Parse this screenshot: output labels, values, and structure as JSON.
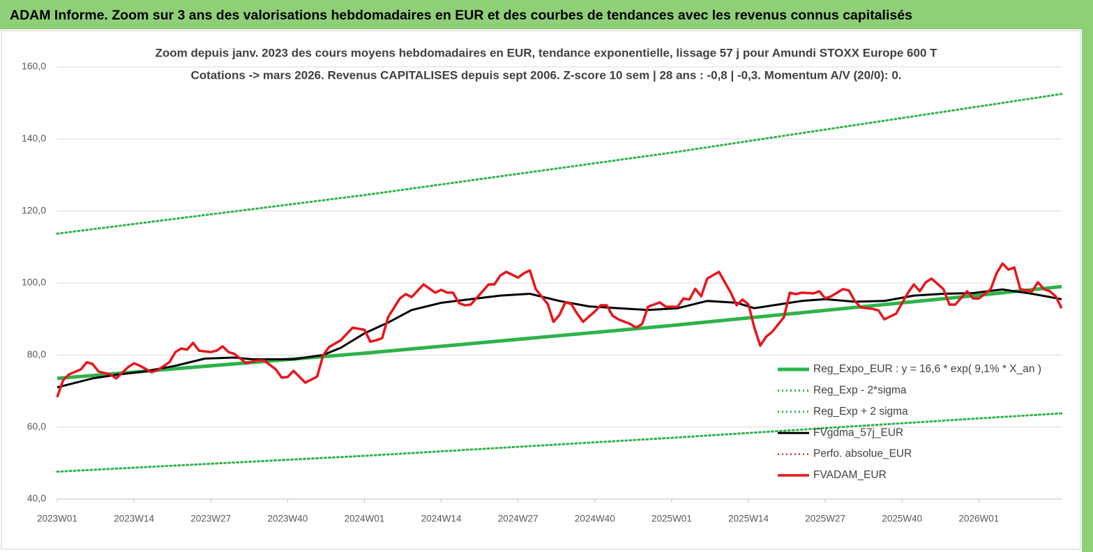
{
  "chart_data": {
    "type": "line",
    "title": "ADAM Informe. Zoom sur 3 ans des valorisations hebdomadaires en EUR et des courbes de tendances avec les revenus connus capitalisés",
    "subtitle": [
      "Zoom depuis janv. 2023 des cours moyens hebdomadaires en EUR, tendance exponentielle, lissage 57 j pour Amundi STOXX Europe 600 T",
      "Cotations -> mars 2026. Revenus CAPITALISES depuis sept 2006. Z-score 10 sem | 28 ans : -0,8 | -0,3. Momentum A/V (20/0): 0."
    ],
    "xlim": [
      0,
      170
    ],
    "xticks": [
      {
        "value": 0,
        "label": "2023W01"
      },
      {
        "value": 13,
        "label": "2023W14"
      },
      {
        "value": 26,
        "label": "2023W27"
      },
      {
        "value": 39,
        "label": "2023W40"
      },
      {
        "value": 52,
        "label": "2024W01"
      },
      {
        "value": 65,
        "label": "2024W14"
      },
      {
        "value": 78,
        "label": "2024W27"
      },
      {
        "value": 91,
        "label": "2024W40"
      },
      {
        "value": 104,
        "label": "2025W01"
      },
      {
        "value": 117,
        "label": "2025W14"
      },
      {
        "value": 130,
        "label": "2025W27"
      },
      {
        "value": 143,
        "label": "2025W40"
      },
      {
        "value": 156,
        "label": "2026W01"
      }
    ],
    "ylim": [
      40,
      160
    ],
    "yticks": [
      {
        "value": 40,
        "label": "40,0"
      },
      {
        "value": 60,
        "label": "60,0"
      },
      {
        "value": 80,
        "label": "80,0"
      },
      {
        "value": 100,
        "label": "100,0"
      },
      {
        "value": 120,
        "label": "120,0"
      },
      {
        "value": 140,
        "label": "140,0"
      },
      {
        "value": 160,
        "label": "160,0"
      }
    ],
    "grid": true,
    "legend": "right",
    "series": [
      {
        "name": "Reg_Expo_EUR : y = 16,6 * exp( 9,1% *  X_an )",
        "color": "#2db34a",
        "style": "solid",
        "width": 5,
        "x": [
          0,
          52,
          104,
          156,
          170
        ],
        "values": [
          73.5,
          80.5,
          88.2,
          96.6,
          99
        ]
      },
      {
        "name": "Reg_Exp - 2*sigma",
        "color": "#2db34a",
        "style": "dotted",
        "width": 3,
        "x": [
          0,
          52,
          104,
          156,
          170
        ],
        "values": [
          47.6,
          52,
          57,
          62.4,
          63.8
        ]
      },
      {
        "name": "Reg_Exp + 2 sigma",
        "color": "#2db34a",
        "style": "dotted",
        "width": 3,
        "x": [
          0,
          52,
          104,
          156,
          170
        ],
        "values": [
          113.7,
          124.4,
          136.2,
          149,
          152.5
        ]
      },
      {
        "name": "FVgdma_57j_EUR",
        "color": "#000000",
        "style": "solid",
        "width": 3,
        "x": [
          0,
          6,
          10,
          15,
          20,
          25,
          30,
          33,
          40,
          45,
          48,
          52,
          56,
          60,
          65,
          70,
          75,
          80,
          85,
          90,
          95,
          100,
          105,
          110,
          115,
          118,
          122,
          126,
          130,
          135,
          140,
          145,
          150,
          155,
          160,
          165,
          170
        ],
        "values": [
          71,
          73.5,
          74.5,
          75.5,
          77,
          79,
          79.3,
          78.8,
          78.8,
          80,
          82,
          86,
          89,
          92.5,
          94.5,
          95.5,
          96.5,
          97,
          95,
          93.5,
          93,
          92.5,
          93,
          95,
          94.5,
          93,
          94,
          95,
          95.5,
          94.8,
          95,
          96.5,
          97,
          97.2,
          98.2,
          97,
          95.5
        ]
      },
      {
        "name": "Perfo. absolue_EUR",
        "color": "#c00000",
        "style": "dotted",
        "width": 2,
        "x": [],
        "values": []
      },
      {
        "name": "FVADAM_EUR",
        "color": "#e8141c",
        "style": "solid",
        "width": 3.5,
        "x": [
          0,
          1,
          2,
          4,
          5,
          6,
          7,
          9,
          10,
          12,
          13,
          14,
          16,
          17,
          19,
          20,
          21,
          22,
          23,
          24,
          26,
          27,
          28,
          29,
          30,
          32,
          34,
          35,
          37,
          38,
          39,
          40,
          42,
          44,
          45,
          46,
          48,
          50,
          52,
          53,
          54,
          55,
          56,
          58,
          59,
          60,
          62,
          64,
          65,
          66,
          67,
          68,
          69,
          70,
          72,
          73,
          74,
          75,
          76,
          78,
          79,
          80,
          81,
          83,
          84,
          85,
          86,
          87,
          88,
          89,
          91,
          92,
          93,
          94,
          95,
          97,
          98,
          99,
          100,
          102,
          103,
          105,
          106,
          107,
          108,
          109,
          110,
          112,
          113,
          114,
          115,
          116,
          117,
          118,
          119,
          120,
          121,
          123,
          124,
          125,
          126,
          128,
          129,
          130,
          131,
          133,
          134,
          135,
          136,
          138,
          139,
          140,
          142,
          144,
          145,
          146,
          147,
          148,
          150,
          151,
          152,
          154,
          155,
          156,
          158,
          159,
          160,
          161,
          162,
          163,
          165,
          166,
          167,
          168,
          169,
          170
        ],
        "values": [
          68.3,
          73,
          74.6,
          76,
          78,
          77.5,
          75.4,
          74.6,
          73.5,
          76.6,
          77.7,
          77,
          75.2,
          75.8,
          78,
          80.8,
          81.8,
          81.5,
          83.4,
          81.2,
          80.8,
          81.2,
          82.4,
          80.8,
          80.3,
          77.7,
          78.5,
          78.5,
          76,
          73.7,
          73.9,
          75.6,
          72.3,
          74,
          79.9,
          82.2,
          84.1,
          87.6,
          87,
          83.7,
          84.1,
          84.7,
          90.5,
          95.7,
          96.9,
          96.1,
          99.6,
          97.3,
          98.1,
          97.3,
          97.3,
          94.4,
          93.8,
          94,
          97.7,
          99.6,
          99.6,
          102.1,
          103.1,
          101.5,
          102.7,
          103.5,
          98.3,
          94.2,
          89.2,
          91.1,
          94.6,
          94.2,
          91.5,
          89.2,
          92.1,
          93.8,
          93.8,
          90.9,
          89.9,
          88.6,
          87.6,
          88.6,
          93.4,
          94.6,
          93.4,
          93.4,
          95.7,
          95.4,
          98.4,
          96.3,
          101.2,
          103.1,
          100.2,
          97.3,
          93.8,
          95.4,
          94,
          87.6,
          82.6,
          85.1,
          86.4,
          90.5,
          97.3,
          96.9,
          97.3,
          97.1,
          97.7,
          95.7,
          96.3,
          98.3,
          97.9,
          95,
          93.2,
          92.8,
          92.4,
          89.9,
          91.5,
          97.3,
          99.6,
          97.7,
          100.2,
          101.2,
          98.3,
          94,
          94,
          97.7,
          95.7,
          95.7,
          98.3,
          102.7,
          105.4,
          103.7,
          104.3,
          98.3,
          97.7,
          100.2,
          98.3,
          97.7,
          96.3,
          93
        ]
      }
    ]
  }
}
